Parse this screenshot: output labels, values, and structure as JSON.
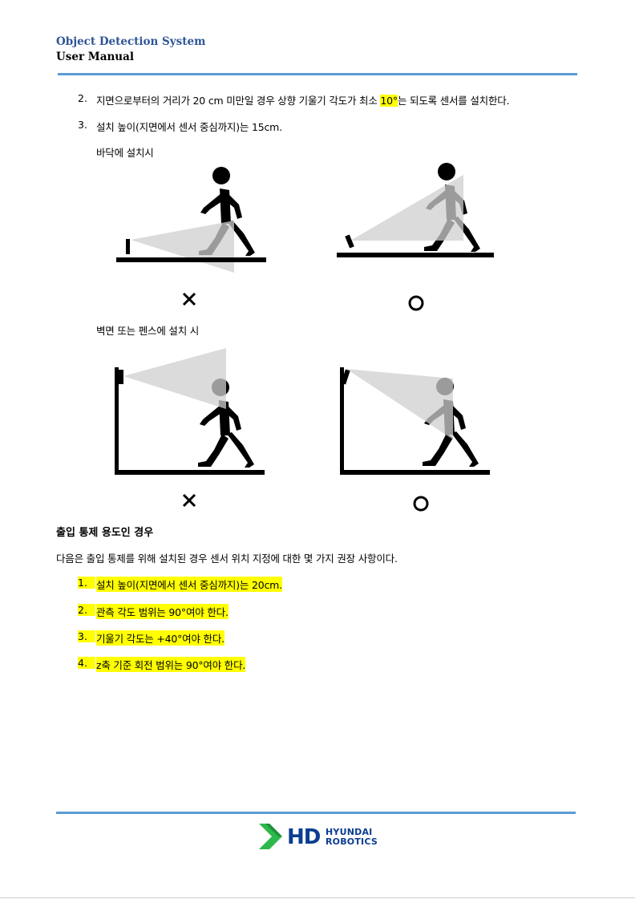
{
  "header": {
    "title": "Object Detection System",
    "subtitle": "User Manual"
  },
  "colors": {
    "header_title": "#2f5597",
    "rule": "#5b9bd5",
    "highlight": "#ffff00",
    "logo_navy": "#0b3d91",
    "logo_green": "#2db84b"
  },
  "steps": [
    {
      "num": "2.",
      "pre": "지면으로부터의 거리가 20 cm 미만일 경우 상향 기울기 각도가 최소 ",
      "highlight": "10°",
      "post": "는 되도록 센서를 설치한다."
    },
    {
      "num": "3.",
      "text": "설치 높이(지면에서 센서 중심까지)는 15cm."
    }
  ],
  "floor_label": "바닥에 설치시",
  "wall_label": "벽면 또는 펜스에 설치 시",
  "marks": {
    "wrong": "✕",
    "right": "○"
  },
  "access_heading": "출입 통제 용도인 경우",
  "access_intro": "다음은 출입 통제를 위해 설치된 경우 센서 위치 지정에 대한 몇 가지 권장 사항이다.",
  "access_items": [
    {
      "num": "1.",
      "text": "설치 높이(지면에서 센서 중심까지)는 20cm."
    },
    {
      "num": "2.",
      "text": "관측 각도 범위는 90°여야 한다."
    },
    {
      "num": "3.",
      "text": "기울기 각도는 +40°여야 한다."
    },
    {
      "num": "4.",
      "text": "z축 기준 회전 범위는 90°여야 한다."
    }
  ],
  "logo": {
    "brand": "HD",
    "line1": "HYUNDAI",
    "line2": "ROBOTICS"
  }
}
